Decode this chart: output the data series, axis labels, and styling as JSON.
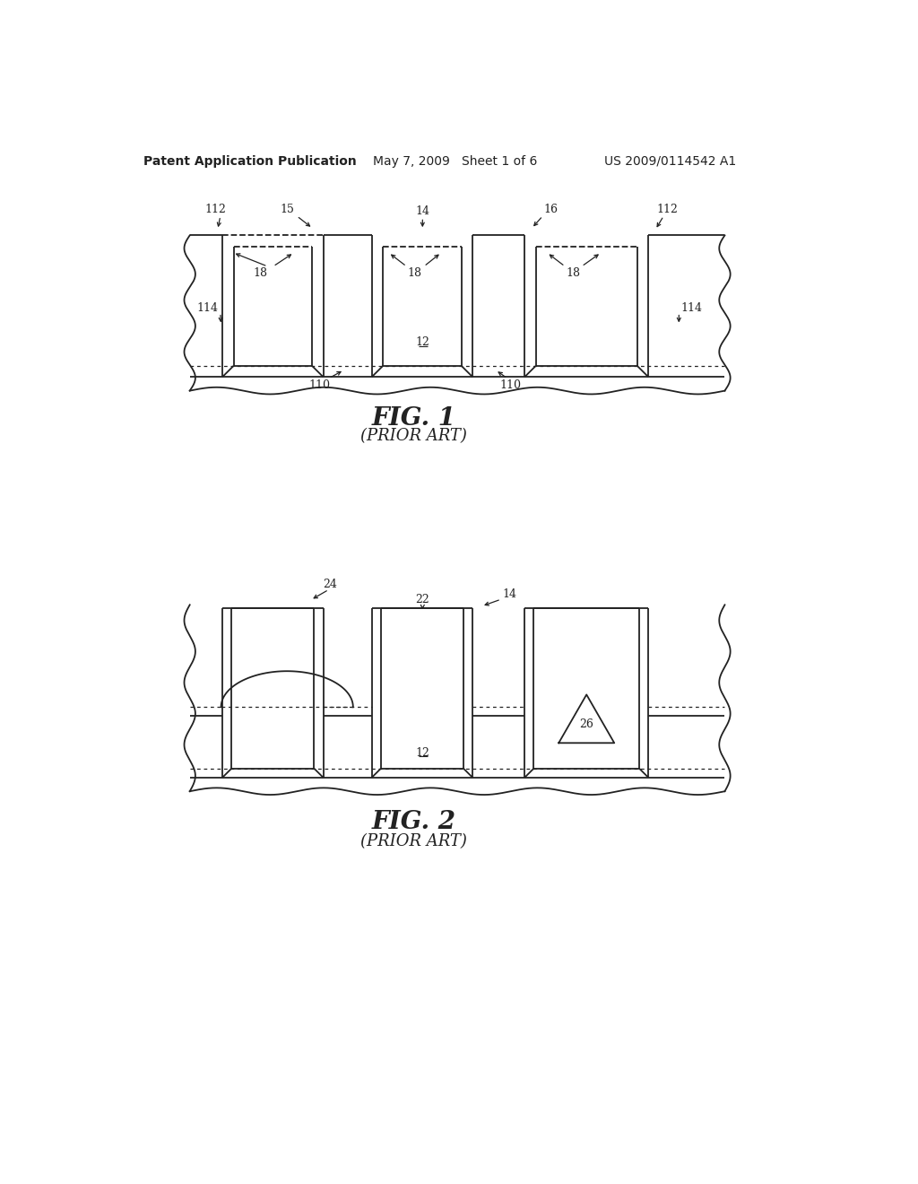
{
  "header_left": "Patent Application Publication",
  "header_mid": "May 7, 2009   Sheet 1 of 6",
  "header_right": "US 2009/0114542 A1",
  "fig1_title": "FIG. 1",
  "fig1_subtitle": "(PRIOR ART)",
  "fig2_title": "FIG. 2",
  "fig2_subtitle": "(PRIOR ART)",
  "bg_color": "#ffffff",
  "line_color": "#222222"
}
